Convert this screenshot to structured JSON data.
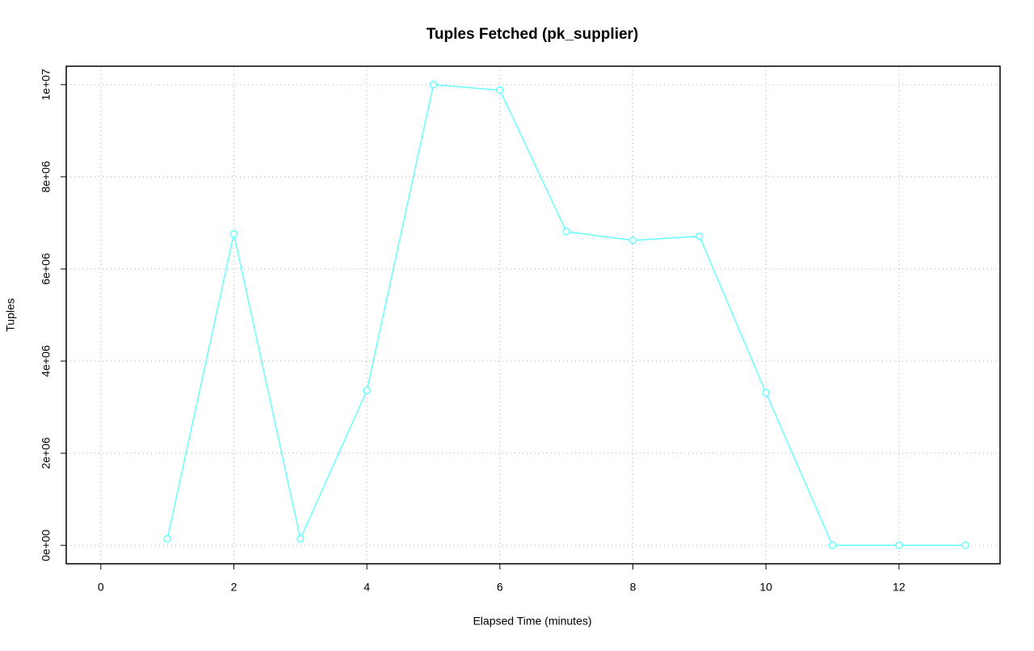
{
  "chart_data": {
    "type": "line",
    "title": "Tuples Fetched (pk_supplier)",
    "x_label": "Elapsed Time (minutes)",
    "y_label": "Tuples",
    "x": [
      1,
      2,
      3,
      4,
      5,
      6,
      7,
      8,
      9,
      10,
      11,
      12,
      13
    ],
    "series": [
      {
        "name": "Tuples",
        "color": "#66ffff",
        "values": [
          140000,
          6760000,
          140000,
          3360000,
          10000000,
          9880000,
          6810000,
          6620000,
          6710000,
          3310000,
          0,
          0,
          0
        ]
      }
    ],
    "xlim": [
      -0.52,
      13.52
    ],
    "xticks": [
      0,
      2,
      4,
      6,
      8,
      10,
      12
    ],
    "ylim": [
      -400000,
      10400000
    ],
    "yticks": [
      {
        "value": 0,
        "label": "0e+00"
      },
      {
        "value": 2000000,
        "label": "2e+06"
      },
      {
        "value": 4000000,
        "label": "4e+06"
      },
      {
        "value": 6000000,
        "label": "6e+06"
      },
      {
        "value": 8000000,
        "label": "8e+06"
      },
      {
        "value": 10000000,
        "label": "1e+07"
      }
    ],
    "grid": true
  }
}
